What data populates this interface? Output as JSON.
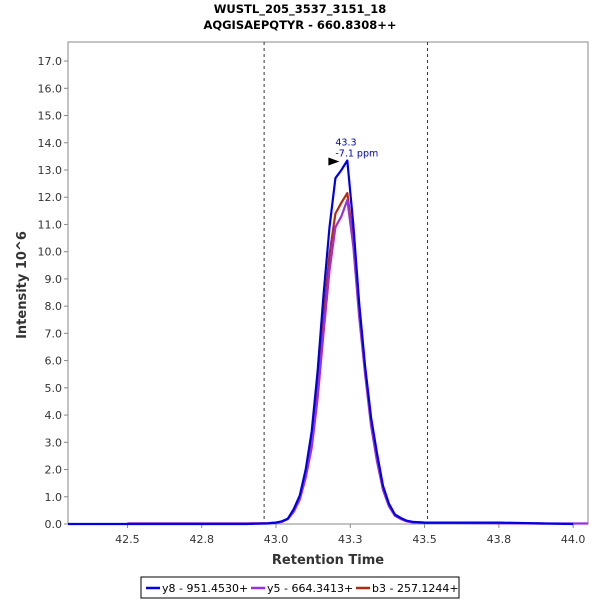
{
  "chart_data": {
    "type": "line",
    "title": "WUSTL_205_3537_3151_18",
    "subtitle": "AQGISAEPQTYR - 660.8308++",
    "xlabel": "Retention Time",
    "ylabel": "Intensity 10^6",
    "xlim": [
      42.3,
      44.05
    ],
    "ylim": [
      0,
      17.7
    ],
    "x_ticks": [
      "42.5",
      "42.8",
      "43.0",
      "43.3",
      "43.5",
      "43.8",
      "44.0"
    ],
    "x_tick_values": [
      42.5,
      42.75,
      43.0,
      43.25,
      43.5,
      43.75,
      44.0
    ],
    "y_ticks": [
      "0.0",
      "1.0",
      "2.0",
      "3.0",
      "4.0",
      "5.0",
      "6.0",
      "7.0",
      "8.0",
      "9.0",
      "10.0",
      "11.0",
      "12.0",
      "13.0",
      "14.0",
      "15.0",
      "16.0",
      "17.0"
    ],
    "y_tick_values": [
      0,
      1,
      2,
      3,
      4,
      5,
      6,
      7,
      8,
      9,
      10,
      11,
      12,
      13,
      14,
      15,
      16,
      17
    ],
    "vlines": [
      42.96,
      43.51
    ],
    "annotation": {
      "x": 43.22,
      "y": 13.35,
      "rt_text": "43.3",
      "ppm_text": "-7.1 ppm",
      "color": "#0000c8"
    },
    "series": [
      {
        "name": "y8 - 951.4530+",
        "color": "#0000e6",
        "x": [
          42.3,
          42.9,
          42.97,
          43.0,
          43.02,
          43.04,
          43.06,
          43.08,
          43.1,
          43.12,
          43.14,
          43.16,
          43.18,
          43.2,
          43.22,
          43.24,
          43.26,
          43.28,
          43.3,
          43.32,
          43.34,
          43.36,
          43.38,
          43.4,
          43.42,
          43.44,
          43.46,
          43.5,
          43.6,
          43.75,
          43.9,
          44.0
        ],
        "y": [
          0.0,
          0.0,
          0.02,
          0.05,
          0.1,
          0.2,
          0.55,
          1.05,
          2.0,
          3.4,
          5.6,
          8.4,
          10.9,
          12.7,
          13.0,
          13.35,
          11.0,
          8.1,
          5.8,
          3.9,
          2.6,
          1.4,
          0.75,
          0.35,
          0.22,
          0.12,
          0.08,
          0.05,
          0.05,
          0.05,
          0.02,
          0.0
        ]
      },
      {
        "name": "y5 - 664.3413+",
        "color": "#9b30e0",
        "x": [
          42.5,
          42.9,
          42.97,
          43.0,
          43.02,
          43.04,
          43.06,
          43.08,
          43.1,
          43.12,
          43.14,
          43.16,
          43.18,
          43.2,
          43.22,
          43.24,
          43.26,
          43.28,
          43.3,
          43.32,
          43.34,
          43.36,
          43.38,
          43.4,
          43.42,
          43.44,
          43.46,
          43.5,
          43.6,
          43.75,
          43.9,
          44.05
        ],
        "y": [
          0.02,
          0.02,
          0.03,
          0.05,
          0.08,
          0.18,
          0.45,
          0.9,
          1.7,
          2.8,
          4.6,
          7.0,
          9.3,
          10.9,
          11.3,
          11.9,
          10.2,
          7.6,
          5.5,
          3.6,
          2.3,
          1.25,
          0.65,
          0.3,
          0.18,
          0.1,
          0.06,
          0.05,
          0.04,
          0.03,
          0.02,
          0.02
        ]
      },
      {
        "name": "b3 - 257.1244+",
        "color": "#b22a10",
        "x": [
          42.5,
          42.9,
          42.97,
          43.0,
          43.02,
          43.04,
          43.06,
          43.08,
          43.1,
          43.12,
          43.14,
          43.16,
          43.18,
          43.2,
          43.22,
          43.24,
          43.26,
          43.28,
          43.3,
          43.32,
          43.34,
          43.36,
          43.38,
          43.4,
          43.42,
          43.44,
          43.46,
          43.5,
          43.6,
          43.75,
          43.9
        ],
        "y": [
          0.02,
          0.02,
          0.03,
          0.05,
          0.08,
          0.2,
          0.5,
          1.0,
          1.85,
          3.0,
          5.0,
          7.6,
          9.9,
          11.4,
          11.8,
          12.15,
          10.4,
          7.8,
          5.6,
          3.7,
          2.4,
          1.3,
          0.7,
          0.32,
          0.2,
          0.1,
          0.07,
          0.05,
          0.04,
          0.03,
          0.02
        ]
      }
    ]
  }
}
